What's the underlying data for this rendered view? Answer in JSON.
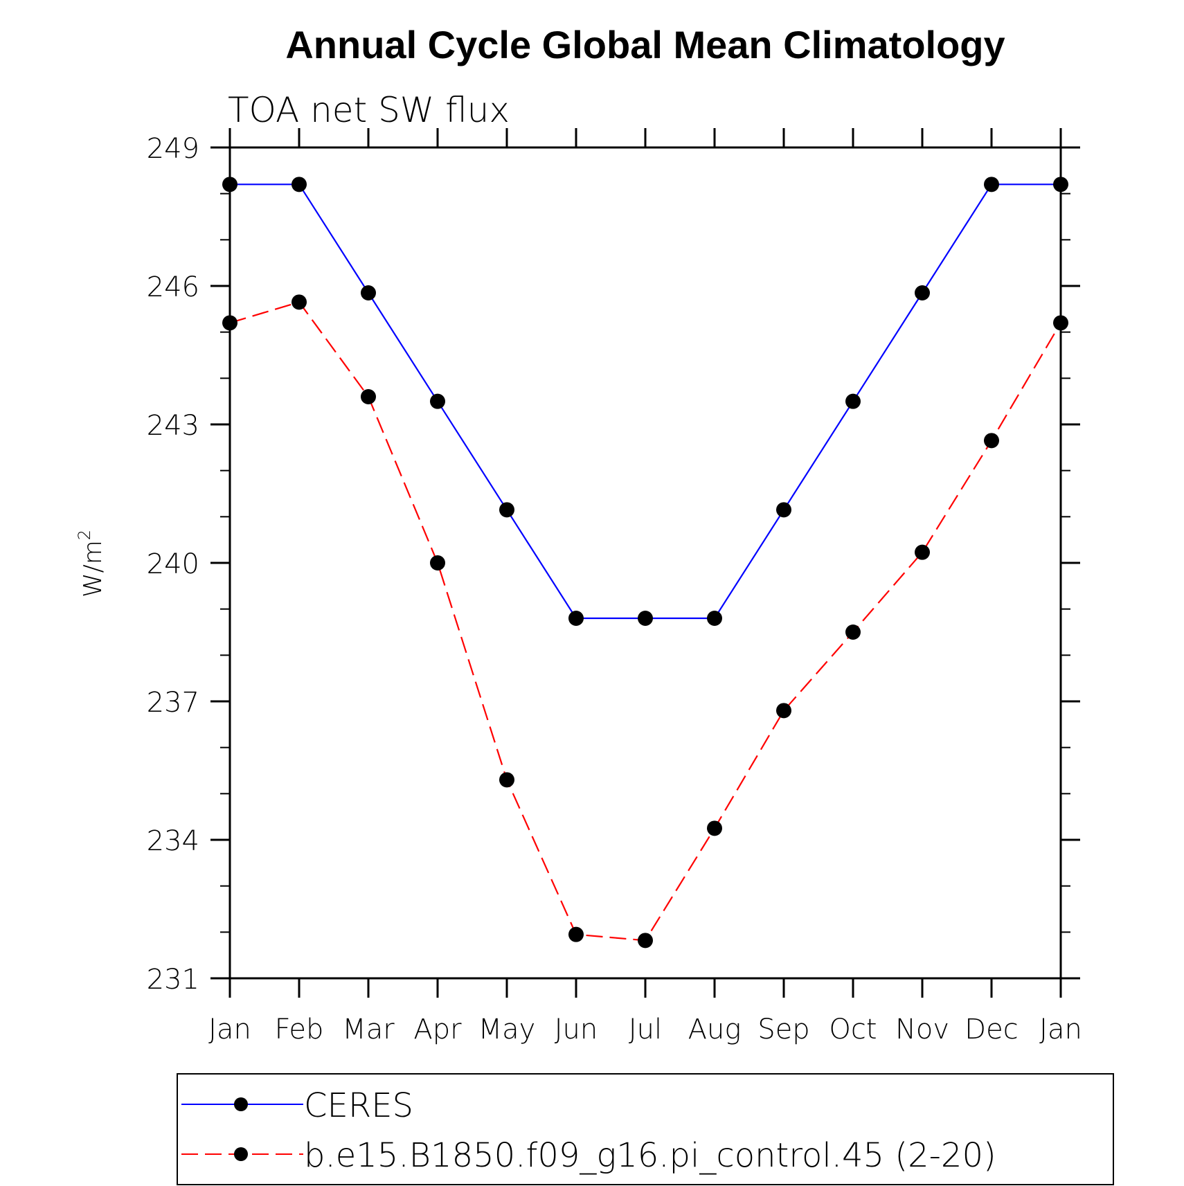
{
  "chart_data": {
    "type": "line",
    "title": "Annual Cycle Global Mean Climatology",
    "subtitle": "TOA net SW flux",
    "ylabel": "W/m",
    "ylabel_superscript": "2",
    "xlabel": "",
    "categories": [
      "Jan",
      "Feb",
      "Mar",
      "Apr",
      "May",
      "Jun",
      "Jul",
      "Aug",
      "Sep",
      "Oct",
      "Nov",
      "Dec",
      "Jan"
    ],
    "ylim": [
      231,
      249
    ],
    "yticks": [
      231,
      234,
      237,
      240,
      243,
      246,
      249
    ],
    "ytick_labels": [
      "231",
      "234",
      "237",
      "240",
      "243",
      "246",
      "249"
    ],
    "grid": false,
    "legend_position": "bottom",
    "series": [
      {
        "name": "CERES",
        "color": "#0000ff",
        "line_style": "solid",
        "marker": "filled-circle",
        "marker_color": "#000000",
        "values": [
          248.2,
          248.2,
          245.85,
          243.5,
          241.15,
          238.8,
          238.8,
          238.8,
          241.15,
          243.5,
          245.85,
          248.2,
          248.2
        ]
      },
      {
        "name": "b.e15.B1850.f09_g16.pi_control.45 (2-20)",
        "color": "#ff0000",
        "line_style": "dashed",
        "marker": "filled-circle",
        "marker_color": "#000000",
        "values": [
          245.2,
          245.65,
          243.6,
          240.0,
          235.3,
          231.95,
          231.82,
          234.25,
          236.8,
          238.5,
          240.23,
          242.65,
          245.2
        ]
      }
    ]
  }
}
